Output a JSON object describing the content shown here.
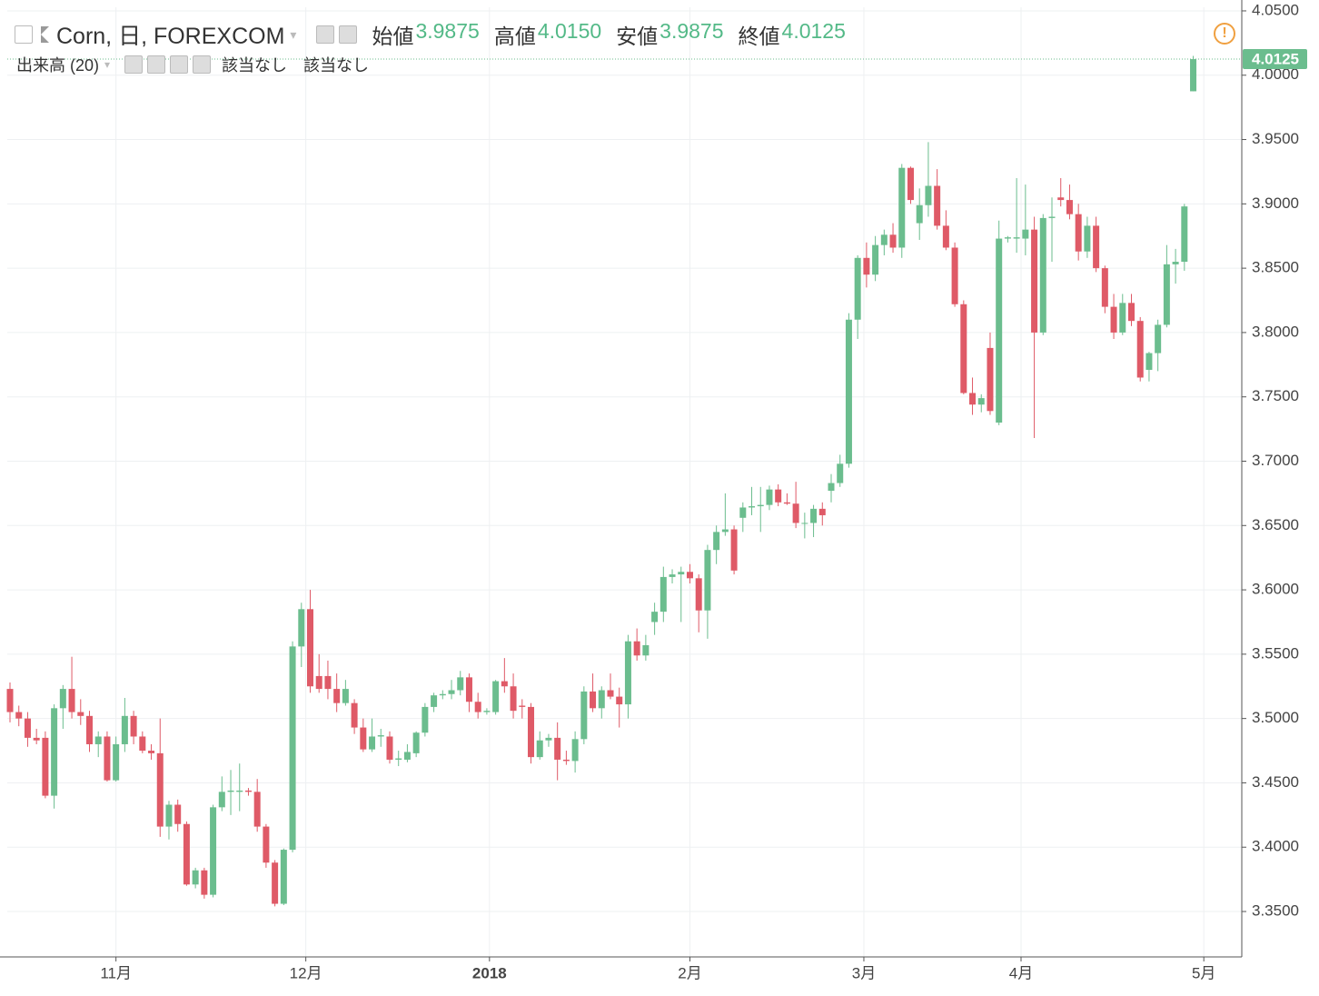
{
  "header": {
    "title": "Corn, 日, FOREXCOM",
    "ohlc": [
      {
        "label": "始値",
        "value": "3.9875"
      },
      {
        "label": "高値",
        "value": "4.0150"
      },
      {
        "label": "安値",
        "value": "3.9875"
      },
      {
        "label": "終値",
        "value": "4.0125"
      }
    ],
    "indicator": "出来高 (20)",
    "indicator_values": [
      "該当なし",
      "該当なし"
    ]
  },
  "chart_data": {
    "type": "candlestick",
    "up_color": "#6bbd8e",
    "down_color": "#df5a67",
    "grid": true,
    "ylim": [
      3.3147,
      4.0528
    ],
    "yticks": [
      {
        "value": 3.35,
        "label": "3.3500"
      },
      {
        "value": 3.4,
        "label": "3.4000"
      },
      {
        "value": 3.45,
        "label": "3.4500"
      },
      {
        "value": 3.5,
        "label": "3.5000"
      },
      {
        "value": 3.55,
        "label": "3.5500"
      },
      {
        "value": 3.6,
        "label": "3.6000"
      },
      {
        "value": 3.65,
        "label": "3.6500"
      },
      {
        "value": 3.7,
        "label": "3.7000"
      },
      {
        "value": 3.75,
        "label": "3.7500"
      },
      {
        "value": 3.8,
        "label": "3.8000"
      },
      {
        "value": 3.85,
        "label": "3.8500"
      },
      {
        "value": 3.9,
        "label": "3.9000"
      },
      {
        "value": 3.95,
        "label": "3.9500"
      },
      {
        "value": 4.0,
        "label": "4.0000"
      },
      {
        "value": 4.05,
        "label": "4.0500"
      }
    ],
    "xlim": [
      -0.31,
      139.5
    ],
    "xticks": [
      {
        "value": 12,
        "label": "11月"
      },
      {
        "value": 33.5,
        "label": "12月"
      },
      {
        "value": 54.3,
        "label": "2018"
      },
      {
        "value": 77,
        "label": "2月"
      },
      {
        "value": 96.7,
        "label": "3月"
      },
      {
        "value": 114.5,
        "label": "4月"
      },
      {
        "value": 135.2,
        "label": "5月"
      }
    ],
    "ohlc": [
      [
        3.523,
        3.528,
        3.497,
        3.505
      ],
      [
        3.505,
        3.51,
        3.494,
        3.5
      ],
      [
        3.5,
        3.505,
        3.478,
        3.485
      ],
      [
        3.485,
        3.492,
        3.48,
        3.483
      ],
      [
        3.485,
        3.49,
        3.438,
        3.44
      ],
      [
        3.44,
        3.511,
        3.43,
        3.508
      ],
      [
        3.508,
        3.526,
        3.492,
        3.523
      ],
      [
        3.523,
        3.548,
        3.5,
        3.505
      ],
      [
        3.505,
        3.515,
        3.495,
        3.502
      ],
      [
        3.502,
        3.506,
        3.474,
        3.48
      ],
      [
        3.48,
        3.49,
        3.47,
        3.486
      ],
      [
        3.486,
        3.49,
        3.451,
        3.452
      ],
      [
        3.452,
        3.486,
        3.451,
        3.48
      ],
      [
        3.48,
        3.516,
        3.474,
        3.502
      ],
      [
        3.502,
        3.506,
        3.48,
        3.486
      ],
      [
        3.486,
        3.49,
        3.473,
        3.475
      ],
      [
        3.475,
        3.48,
        3.468,
        3.473
      ],
      [
        3.473,
        3.5,
        3.408,
        3.416
      ],
      [
        3.416,
        3.436,
        3.406,
        3.433
      ],
      [
        3.433,
        3.437,
        3.412,
        3.418
      ],
      [
        3.418,
        3.42,
        3.37,
        3.371
      ],
      [
        3.371,
        3.384,
        3.368,
        3.382
      ],
      [
        3.382,
        3.384,
        3.36,
        3.363
      ],
      [
        3.363,
        3.433,
        3.361,
        3.431
      ],
      [
        3.431,
        3.455,
        3.428,
        3.443
      ],
      [
        3.443,
        3.46,
        3.425,
        3.444
      ],
      [
        3.443,
        3.465,
        3.428,
        3.444
      ],
      [
        3.444,
        3.446,
        3.44,
        3.443
      ],
      [
        3.443,
        3.453,
        3.412,
        3.416
      ],
      [
        3.416,
        3.418,
        3.384,
        3.388
      ],
      [
        3.388,
        3.39,
        3.354,
        3.356
      ],
      [
        3.356,
        3.399,
        3.355,
        3.398
      ],
      [
        3.398,
        3.56,
        3.396,
        3.556
      ],
      [
        3.556,
        3.59,
        3.54,
        3.585
      ],
      [
        3.585,
        3.6,
        3.52,
        3.525
      ],
      [
        3.533,
        3.55,
        3.52,
        3.523
      ],
      [
        3.533,
        3.545,
        3.515,
        3.523
      ],
      [
        3.523,
        3.535,
        3.505,
        3.512
      ],
      [
        3.512,
        3.53,
        3.51,
        3.523
      ],
      [
        3.512,
        3.515,
        3.488,
        3.493
      ],
      [
        3.493,
        3.5,
        3.474,
        3.476
      ],
      [
        3.476,
        3.5,
        3.474,
        3.486
      ],
      [
        3.486,
        3.492,
        3.478,
        3.487
      ],
      [
        3.486,
        3.49,
        3.465,
        3.468
      ],
      [
        3.468,
        3.475,
        3.463,
        3.469
      ],
      [
        3.468,
        3.48,
        3.466,
        3.474
      ],
      [
        3.473,
        3.49,
        3.47,
        3.489
      ],
      [
        3.489,
        3.512,
        3.486,
        3.509
      ],
      [
        3.509,
        3.52,
        3.505,
        3.518
      ],
      [
        3.518,
        3.522,
        3.515,
        3.519
      ],
      [
        3.519,
        3.53,
        3.515,
        3.522
      ],
      [
        3.522,
        3.537,
        3.518,
        3.532
      ],
      [
        3.532,
        3.535,
        3.505,
        3.513
      ],
      [
        3.513,
        3.52,
        3.5,
        3.505
      ],
      [
        3.505,
        3.508,
        3.503,
        3.506
      ],
      [
        3.505,
        3.53,
        3.503,
        3.529
      ],
      [
        3.529,
        3.547,
        3.52,
        3.525
      ],
      [
        3.525,
        3.535,
        3.5,
        3.506
      ],
      [
        3.51,
        3.515,
        3.5,
        3.509
      ],
      [
        3.509,
        3.512,
        3.465,
        3.47
      ],
      [
        3.47,
        3.49,
        3.468,
        3.483
      ],
      [
        3.483,
        3.488,
        3.478,
        3.485
      ],
      [
        3.485,
        3.497,
        3.452,
        3.468
      ],
      [
        3.468,
        3.475,
        3.464,
        3.467
      ],
      [
        3.467,
        3.49,
        3.458,
        3.484
      ],
      [
        3.484,
        3.525,
        3.48,
        3.521
      ],
      [
        3.521,
        3.535,
        3.505,
        3.508
      ],
      [
        3.508,
        3.525,
        3.5,
        3.522
      ],
      [
        3.522,
        3.535,
        3.515,
        3.517
      ],
      [
        3.517,
        3.524,
        3.493,
        3.511
      ],
      [
        3.511,
        3.565,
        3.5,
        3.56
      ],
      [
        3.56,
        3.57,
        3.545,
        3.549
      ],
      [
        3.549,
        3.565,
        3.545,
        3.557
      ],
      [
        3.575,
        3.59,
        3.565,
        3.583
      ],
      [
        3.583,
        3.618,
        3.575,
        3.61
      ],
      [
        3.61,
        3.616,
        3.605,
        3.612
      ],
      [
        3.612,
        3.618,
        3.575,
        3.614
      ],
      [
        3.614,
        3.62,
        3.605,
        3.609
      ],
      [
        3.609,
        3.612,
        3.567,
        3.584
      ],
      [
        3.584,
        3.635,
        3.562,
        3.631
      ],
      [
        3.631,
        3.65,
        3.62,
        3.645
      ],
      [
        3.645,
        3.675,
        3.642,
        3.647
      ],
      [
        3.647,
        3.65,
        3.612,
        3.615
      ],
      [
        3.656,
        3.668,
        3.645,
        3.664
      ],
      [
        3.664,
        3.68,
        3.658,
        3.665
      ],
      [
        3.665,
        3.68,
        3.645,
        3.666
      ],
      [
        3.666,
        3.681,
        3.662,
        3.678
      ],
      [
        3.678,
        3.682,
        3.665,
        3.668
      ],
      [
        3.668,
        3.675,
        3.666,
        3.667
      ],
      [
        3.667,
        3.684,
        3.648,
        3.652
      ],
      [
        3.652,
        3.66,
        3.64,
        3.652
      ],
      [
        3.652,
        3.666,
        3.641,
        3.663
      ],
      [
        3.663,
        3.668,
        3.65,
        3.658
      ],
      [
        3.677,
        3.69,
        3.668,
        3.683
      ],
      [
        3.683,
        3.705,
        3.68,
        3.698
      ],
      [
        3.698,
        3.815,
        3.695,
        3.81
      ],
      [
        3.81,
        3.86,
        3.795,
        3.858
      ],
      [
        3.858,
        3.87,
        3.835,
        3.845
      ],
      [
        3.845,
        3.875,
        3.84,
        3.868
      ],
      [
        3.868,
        3.88,
        3.86,
        3.876
      ],
      [
        3.876,
        3.885,
        3.862,
        3.866
      ],
      [
        3.866,
        3.931,
        3.858,
        3.928
      ],
      [
        3.928,
        3.929,
        3.9,
        3.903
      ],
      [
        3.885,
        3.912,
        3.872,
        3.899
      ],
      [
        3.899,
        3.948,
        3.89,
        3.914
      ],
      [
        3.914,
        3.927,
        3.88,
        3.883
      ],
      [
        3.883,
        3.895,
        3.864,
        3.866
      ],
      [
        3.866,
        3.87,
        3.82,
        3.822
      ],
      [
        3.822,
        3.825,
        3.752,
        3.753
      ],
      [
        3.753,
        3.765,
        3.736,
        3.744
      ],
      [
        3.744,
        3.752,
        3.738,
        3.749
      ],
      [
        3.788,
        3.8,
        3.736,
        3.739
      ],
      [
        3.73,
        3.887,
        3.728,
        3.873
      ],
      [
        3.873,
        3.875,
        3.87,
        3.874
      ],
      [
        3.873,
        3.92,
        3.862,
        3.874
      ],
      [
        3.873,
        3.915,
        3.86,
        3.88
      ],
      [
        3.88,
        3.89,
        3.718,
        3.8
      ],
      [
        3.8,
        3.892,
        3.798,
        3.889
      ],
      [
        3.889,
        3.905,
        3.855,
        3.89
      ],
      [
        3.905,
        3.92,
        3.898,
        3.903
      ],
      [
        3.903,
        3.915,
        3.888,
        3.892
      ],
      [
        3.892,
        3.9,
        3.856,
        3.863
      ],
      [
        3.863,
        3.89,
        3.858,
        3.883
      ],
      [
        3.883,
        3.89,
        3.847,
        3.85
      ],
      [
        3.85,
        3.852,
        3.815,
        3.82
      ],
      [
        3.82,
        3.83,
        3.795,
        3.8
      ],
      [
        3.8,
        3.83,
        3.798,
        3.823
      ],
      [
        3.823,
        3.83,
        3.805,
        3.809
      ],
      [
        3.809,
        3.812,
        3.762,
        3.765
      ],
      [
        3.771,
        3.785,
        3.762,
        3.784
      ],
      [
        3.784,
        3.81,
        3.77,
        3.806
      ],
      [
        3.806,
        3.868,
        3.804,
        3.853
      ],
      [
        3.853,
        3.865,
        3.838,
        3.855
      ],
      [
        3.855,
        3.9,
        3.848,
        3.898
      ],
      [
        3.9875,
        4.015,
        3.9875,
        4.0125
      ]
    ]
  }
}
